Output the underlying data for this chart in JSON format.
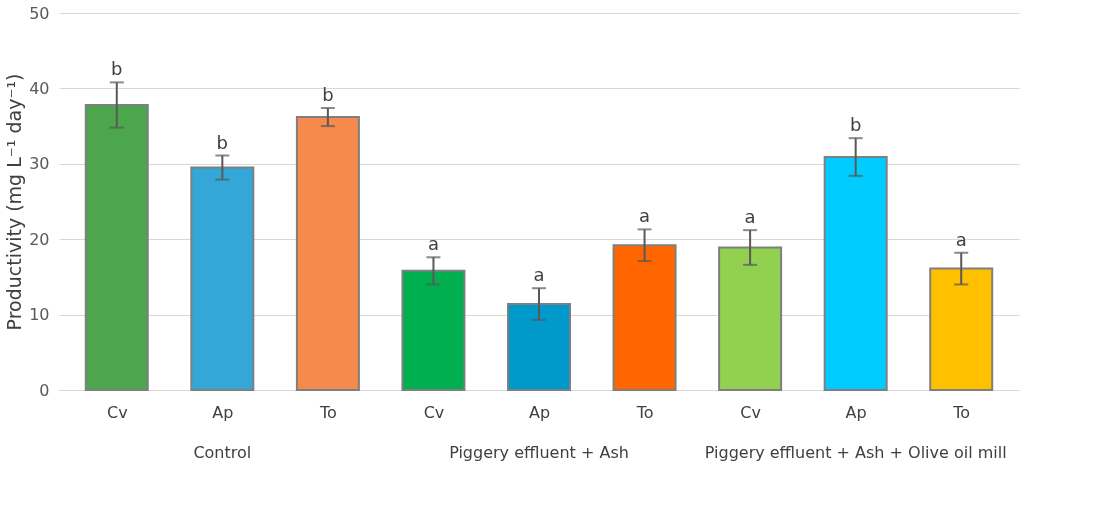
{
  "chart_data": {
    "type": "bar",
    "ylabel": "Productivity (mg L⁻¹ day⁻¹)",
    "categories": [
      "Cv",
      "Ap",
      "To",
      "Cv",
      "Ap",
      "To",
      "Cv",
      "Ap",
      "To"
    ],
    "values": [
      37.8,
      29.5,
      36.2,
      15.8,
      11.4,
      19.2,
      18.9,
      30.9,
      16.1
    ],
    "errors": [
      3.0,
      1.6,
      1.2,
      1.8,
      2.1,
      2.1,
      2.3,
      2.5,
      2.1
    ],
    "colors": [
      "#4ca64c",
      "#33a8d8",
      "#f58a4c",
      "#00b050",
      "#0099cc",
      "#ff6600",
      "#92d050",
      "#00ccff",
      "#ffc000"
    ],
    "value_labels": [
      "b",
      "b",
      "b",
      "a",
      "a",
      "a",
      "a",
      "b",
      "a"
    ],
    "annotations": [
      "Control",
      "Piggery effluent + Ash",
      "Piggery effluent + Ash + Olive oil mill"
    ],
    "ylim": [
      0,
      50
    ],
    "yticks": [
      0,
      10,
      20,
      30,
      40,
      50
    ],
    "grid": "y"
  }
}
